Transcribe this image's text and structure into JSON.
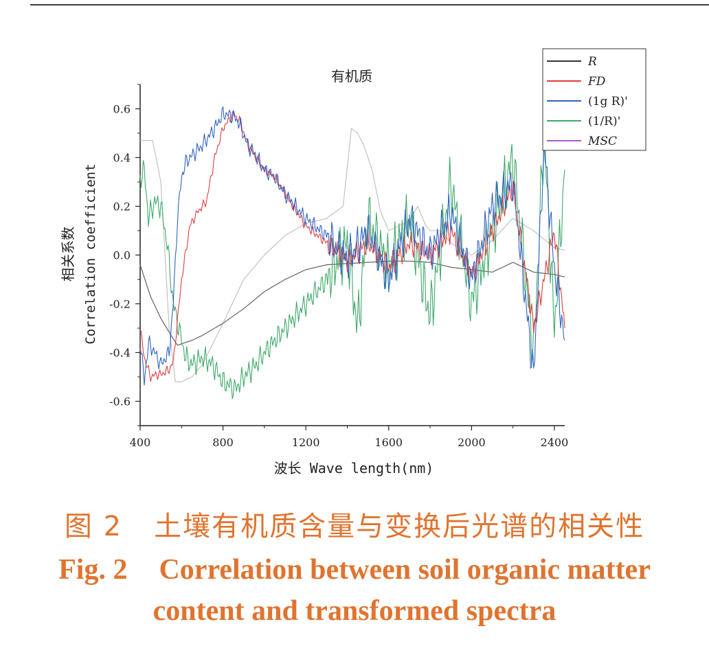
{
  "figure": {
    "caption_cn_label": "图 2",
    "caption_cn_text": "土壤有机质含量与变换后光谱的相关性",
    "caption_en_label": "Fig. 2",
    "caption_en_text1": "Correlation between soil organic matter",
    "caption_en_text2": "content and transformed spectra",
    "caption_color": "#e0742f"
  },
  "chart_data": {
    "type": "line",
    "title": "有机质",
    "xlabel": "波长 Wave length(nm)",
    "ylabel_cn": "相关系数",
    "ylabel_en": "Correlation coefficient",
    "xlim": [
      400,
      2450
    ],
    "ylim": [
      -0.7,
      0.7
    ],
    "xticks": [
      400,
      800,
      1200,
      1600,
      2000,
      2400
    ],
    "yticks": [
      -0.6,
      -0.4,
      -0.2,
      0.0,
      0.2,
      0.4,
      0.6
    ],
    "xtick_labels": [
      "400",
      "800",
      "1200",
      "1600",
      "2000",
      "2400"
    ],
    "ytick_labels": [
      "-0.6",
      "-0.4",
      "-0.2",
      "0.0",
      "0.2",
      "0.4",
      "0.6"
    ],
    "legend_position": "top-right",
    "grid": false,
    "series": [
      {
        "name": "R",
        "color": "#6b6b6b",
        "noise": 0,
        "x": [
          400,
          450,
          500,
          550,
          580,
          650,
          700,
          800,
          900,
          1000,
          1100,
          1200,
          1300,
          1400,
          1500,
          1600,
          1700,
          1800,
          1900,
          2000,
          2100,
          2200,
          2300,
          2400,
          2450
        ],
        "y": [
          -0.04,
          -0.17,
          -0.26,
          -0.33,
          -0.37,
          -0.35,
          -0.33,
          -0.28,
          -0.22,
          -0.15,
          -0.1,
          -0.06,
          -0.04,
          -0.035,
          -0.03,
          -0.025,
          -0.025,
          -0.03,
          -0.05,
          -0.06,
          -0.07,
          -0.03,
          -0.07,
          -0.08,
          -0.09
        ]
      },
      {
        "name": "FD",
        "color": "#e03c3c",
        "noise": 0.018,
        "x": [
          400,
          420,
          450,
          480,
          500,
          540,
          560,
          600,
          640,
          680,
          720,
          760,
          800,
          850,
          880,
          920,
          1000,
          1050,
          1100,
          1200,
          1300,
          1400,
          1500,
          1600,
          1700,
          1800,
          1900,
          2000,
          2100,
          2200,
          2300,
          2400,
          2450
        ],
        "y": [
          -0.3,
          -0.42,
          -0.5,
          -0.49,
          -0.49,
          -0.47,
          -0.44,
          -0.1,
          0.12,
          0.18,
          0.22,
          0.4,
          0.52,
          0.58,
          0.55,
          0.45,
          0.35,
          0.32,
          0.25,
          0.12,
          0.05,
          -0.02,
          0.05,
          -0.05,
          0.05,
          0.0,
          0.1,
          -0.08,
          0.1,
          0.28,
          -0.3,
          0.1,
          -0.3
        ]
      },
      {
        "name": "(1g R)'",
        "color": "#2f62c4",
        "noise": 0.03,
        "x": [
          400,
          420,
          440,
          470,
          500,
          540,
          560,
          580,
          600,
          620,
          640,
          700,
          760,
          800,
          850,
          880,
          920,
          950,
          1000,
          1050,
          1100,
          1200,
          1300,
          1400,
          1500,
          1600,
          1700,
          1800,
          1900,
          2000,
          2100,
          2200,
          2300,
          2350,
          2400,
          2450
        ],
        "y": [
          -0.35,
          -0.52,
          -0.36,
          -0.4,
          -0.45,
          -0.4,
          -0.2,
          0.15,
          0.32,
          0.38,
          0.4,
          0.45,
          0.52,
          0.58,
          0.57,
          0.54,
          0.45,
          0.42,
          0.35,
          0.32,
          0.25,
          0.15,
          0.08,
          -0.02,
          0.1,
          -0.1,
          0.15,
          0.0,
          0.18,
          -0.1,
          0.2,
          0.3,
          -0.5,
          0.45,
          -0.05,
          -0.35
        ]
      },
      {
        "name": "(1/R)'",
        "color": "#3ea86a",
        "noise": 0.045,
        "x": [
          400,
          420,
          440,
          470,
          500,
          530,
          560,
          600,
          620,
          650,
          700,
          750,
          800,
          860,
          900,
          960,
          1000,
          1050,
          1100,
          1200,
          1300,
          1400,
          1450,
          1500,
          1600,
          1700,
          1800,
          1900,
          2000,
          2100,
          2200,
          2300,
          2350,
          2400,
          2450
        ],
        "y": [
          0.32,
          0.35,
          0.15,
          0.22,
          0.2,
          0.05,
          -0.2,
          -0.35,
          -0.42,
          -0.45,
          -0.42,
          -0.45,
          -0.52,
          -0.55,
          -0.5,
          -0.45,
          -0.4,
          -0.35,
          -0.3,
          -0.2,
          -0.1,
          0.05,
          -0.3,
          0.15,
          -0.05,
          0.15,
          -0.25,
          0.3,
          -0.2,
          0.1,
          0.4,
          -0.4,
          0.5,
          -0.3,
          0.35
        ]
      },
      {
        "name": "MSC",
        "color": "#c6c6c6",
        "noise": 0,
        "x": [
          400,
          460,
          500,
          540,
          570,
          600,
          650,
          700,
          800,
          900,
          1000,
          1100,
          1200,
          1300,
          1380,
          1420,
          1450,
          1480,
          1520,
          1560,
          1600,
          1650,
          1700,
          1740,
          1780,
          1800,
          1850,
          1900,
          2000,
          2100,
          2200,
          2300,
          2400,
          2450
        ],
        "y": [
          0.47,
          0.47,
          0.3,
          -0.3,
          -0.52,
          -0.52,
          -0.5,
          -0.45,
          -0.28,
          -0.1,
          0.0,
          0.08,
          0.13,
          0.15,
          0.2,
          0.52,
          0.5,
          0.45,
          0.35,
          0.18,
          0.1,
          0.12,
          0.14,
          0.2,
          0.12,
          0.1,
          0.1,
          0.05,
          0.0,
          0.06,
          0.15,
          0.1,
          0.03,
          0.02
        ]
      }
    ]
  }
}
